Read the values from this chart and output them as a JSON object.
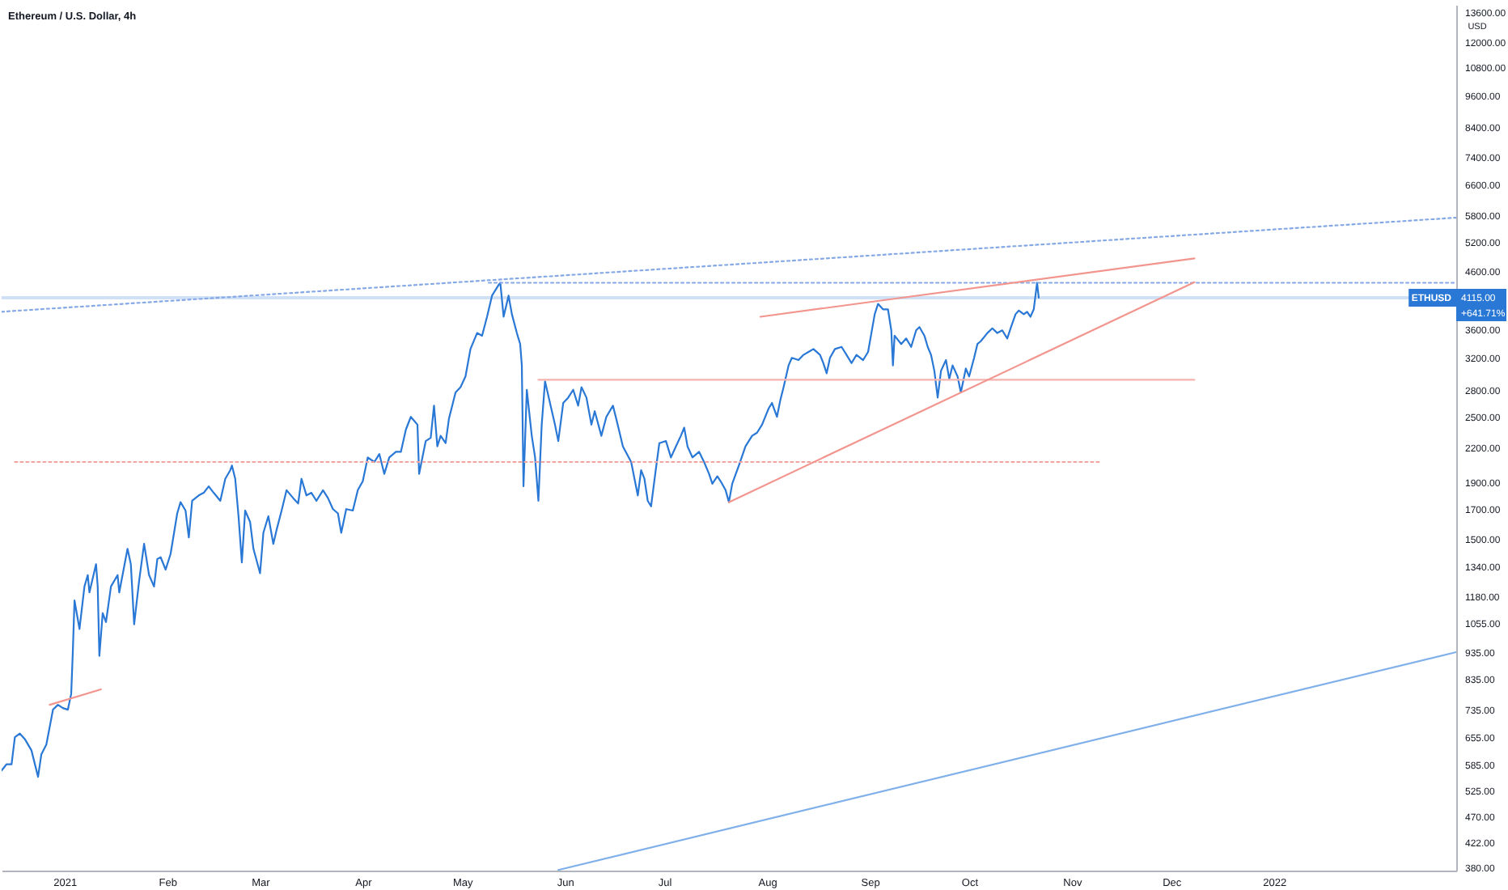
{
  "chart_data": {
    "type": "line",
    "title": "Ethereum / U.S. Dollar, 4h",
    "ylabel": "USD",
    "log": "y",
    "xlim": [
      "2020-12-13",
      "2022-02-25"
    ],
    "xticks": [
      {
        "value": "2021-01-01",
        "label": "2021"
      },
      {
        "value": "2021-02-01",
        "label": "Feb"
      },
      {
        "value": "2021-03-01",
        "label": "Mar"
      },
      {
        "value": "2021-04-01",
        "label": "Apr"
      },
      {
        "value": "2021-05-01",
        "label": "May"
      },
      {
        "value": "2021-06-01",
        "label": "Jun"
      },
      {
        "value": "2021-07-01",
        "label": "Jul"
      },
      {
        "value": "2021-08-01",
        "label": "Aug"
      },
      {
        "value": "2021-09-01",
        "label": "Sep"
      },
      {
        "value": "2021-10-01",
        "label": "Oct"
      },
      {
        "value": "2021-11-01",
        "label": "Nov"
      },
      {
        "value": "2021-12-01",
        "label": "Dec"
      },
      {
        "value": "2022-01-01",
        "label": "2022"
      }
    ],
    "ylim": [
      375,
      14000
    ],
    "yticks": [
      {
        "value": 380,
        "label": "380.00"
      },
      {
        "value": 422,
        "label": "422.00"
      },
      {
        "value": 470,
        "label": "470.00"
      },
      {
        "value": 525,
        "label": "525.00"
      },
      {
        "value": 585,
        "label": "585.00"
      },
      {
        "value": 655,
        "label": "655.00"
      },
      {
        "value": 735,
        "label": "735.00"
      },
      {
        "value": 835,
        "label": "835.00"
      },
      {
        "value": 935,
        "label": "935.00"
      },
      {
        "value": 1055,
        "label": "1055.00"
      },
      {
        "value": 1180,
        "label": "1180.00"
      },
      {
        "value": 1340,
        "label": "1340.00"
      },
      {
        "value": 1500,
        "label": "1500.00"
      },
      {
        "value": 1700,
        "label": "1700.00"
      },
      {
        "value": 1900,
        "label": "1900.00"
      },
      {
        "value": 2200,
        "label": "2200.00"
      },
      {
        "value": 2500,
        "label": "2500.00"
      },
      {
        "value": 2800,
        "label": "2800.00"
      },
      {
        "value": 3200,
        "label": "3200.00"
      },
      {
        "value": 3600,
        "label": "3600.00"
      },
      {
        "value": 4600,
        "label": "4600.00"
      },
      {
        "value": 5200,
        "label": "5200.00"
      },
      {
        "value": 5800,
        "label": "5800.00"
      },
      {
        "value": 6600,
        "label": "6600.00"
      },
      {
        "value": 7400,
        "label": "7400.00"
      },
      {
        "value": 8400,
        "label": "8400.00"
      },
      {
        "value": 9600,
        "label": "9600.00"
      },
      {
        "value": 10800,
        "label": "10800.00"
      },
      {
        "value": 12000,
        "label": "12000.00"
      },
      {
        "value": 13600,
        "label": "13600.00"
      }
    ],
    "series": [
      {
        "name": "ETHUSD",
        "color": "#2a78d6",
        "x": [
          "2020-12-13",
          "2020-12-14T12:00",
          "2020-12-16",
          "2020-12-17",
          "2020-12-18T12:00",
          "2020-12-20",
          "2020-12-22",
          "2020-12-24",
          "2020-12-25",
          "2020-12-26T12:00",
          "2020-12-28T12:00",
          "2020-12-30",
          "2020-12-31T12:00",
          "2021-01-02",
          "2021-01-03",
          "2021-01-03T12:00",
          "2021-01-04",
          "2021-01-05T12:00",
          "2021-01-07",
          "2021-01-08",
          "2021-01-08T12:00",
          "2021-01-10T12:00",
          "2021-01-11",
          "2021-01-11T12:00",
          "2021-01-12T12:00",
          "2021-01-13T12:00",
          "2021-01-15",
          "2021-01-17",
          "2021-01-17T12:00",
          "2021-01-20",
          "2021-01-21",
          "2021-01-22",
          "2021-01-23T12:00",
          "2021-01-25",
          "2021-01-26T12:00",
          "2021-01-28",
          "2021-01-29",
          "2021-01-30",
          "2021-01-31T12:00",
          "2021-02-02",
          "2021-02-04",
          "2021-02-05",
          "2021-02-06T12:00",
          "2021-02-07T12:00",
          "2021-02-08T12:00",
          "2021-02-10T12:00",
          "2021-02-12",
          "2021-02-13T12:00",
          "2021-02-15",
          "2021-02-17",
          "2021-02-18T12:00",
          "2021-02-20",
          "2021-02-20T12:00",
          "2021-02-21T12:00",
          "2021-02-22T12:00",
          "2021-02-23T12:00",
          "2021-02-24T12:00",
          "2021-02-26",
          "2021-02-27",
          "2021-03-01",
          "2021-03-02",
          "2021-03-03T12:00",
          "2021-03-05",
          "2021-03-06",
          "2021-03-07T12:00",
          "2021-03-09",
          "2021-03-11",
          "2021-03-12T12:00",
          "2021-03-13T12:00",
          "2021-03-15",
          "2021-03-16T12:00",
          "2021-03-18",
          "2021-03-20",
          "2021-03-21T12:00",
          "2021-03-23",
          "2021-03-24T12:00",
          "2021-03-25T12:00",
          "2021-03-27",
          "2021-03-29",
          "2021-03-30T12:00",
          "2021-04-01",
          "2021-04-02T12:00",
          "2021-04-04T12:00",
          "2021-04-06",
          "2021-04-07T12:00",
          "2021-04-09",
          "2021-04-11",
          "2021-04-12T12:00",
          "2021-04-14",
          "2021-04-15T12:00",
          "2021-04-17T12:00",
          "2021-04-18",
          "2021-04-20",
          "2021-04-21T12:00",
          "2021-04-22T12:00",
          "2021-04-23T12:00",
          "2021-04-24T12:00",
          "2021-04-26",
          "2021-04-27",
          "2021-04-29",
          "2021-04-30T12:00",
          "2021-05-02",
          "2021-05-03T12:00",
          "2021-05-05T12:00",
          "2021-05-07",
          "2021-05-08T12:00",
          "2021-05-10",
          "2021-05-12",
          "2021-05-12T12:00",
          "2021-05-13T12:00",
          "2021-05-15",
          "2021-05-16",
          "2021-05-17T12:00",
          "2021-05-18T12:00",
          "2021-05-19",
          "2021-05-19T12:00",
          "2021-05-20T12:00",
          "2021-05-22",
          "2021-05-23",
          "2021-05-24",
          "2021-05-25",
          "2021-05-26",
          "2021-05-27T12:00",
          "2021-05-29",
          "2021-05-30",
          "2021-05-31T12:00",
          "2021-06-02",
          "2021-06-03T12:00",
          "2021-06-05",
          "2021-06-06",
          "2021-06-07T12:00",
          "2021-06-09",
          "2021-06-10",
          "2021-06-12",
          "2021-06-13T12:00",
          "2021-06-15T12:00",
          "2021-06-16T12:00",
          "2021-06-18T12:00",
          "2021-06-21",
          "2021-06-22",
          "2021-06-23",
          "2021-06-24",
          "2021-06-25",
          "2021-06-26",
          "2021-06-27",
          "2021-06-28T12:00",
          "2021-06-29T12:00",
          "2021-07-01T12:00",
          "2021-07-03",
          "2021-07-04T12:00",
          "2021-07-06",
          "2021-07-07",
          "2021-07-08",
          "2021-07-09T12:00",
          "2021-07-11T12:00",
          "2021-07-13",
          "2021-07-14T12:00",
          "2021-07-15T12:00",
          "2021-07-17",
          "2021-07-18",
          "2021-07-19T12:00",
          "2021-07-20T12:00",
          "2021-07-21T12:00",
          "2021-07-23T12:00",
          "2021-07-25T12:00",
          "2021-07-27T12:00",
          "2021-07-29",
          "2021-07-30T12:00",
          "2021-08-01T12:00",
          "2021-08-02T12:00",
          "2021-08-04",
          "2021-08-05",
          "2021-08-06",
          "2021-08-07T12:00",
          "2021-08-08T12:00",
          "2021-08-10T12:00",
          "2021-08-12",
          "2021-08-13T12:00",
          "2021-08-15",
          "2021-08-17",
          "2021-08-18",
          "2021-08-19",
          "2021-08-20",
          "2021-08-21T12:00",
          "2021-08-23T12:00",
          "2021-08-25",
          "2021-08-26T12:00",
          "2021-08-28",
          "2021-08-30",
          "2021-08-31T12:00",
          "2021-09-01T12:00",
          "2021-09-02T12:00",
          "2021-09-03T12:00",
          "2021-09-05",
          "2021-09-06T12:00",
          "2021-09-07T12:00",
          "2021-09-08",
          "2021-09-08T12:00",
          "2021-09-10T12:00",
          "2021-09-12",
          "2021-09-13T12:00",
          "2021-09-15",
          "2021-09-16",
          "2021-09-17T12:00",
          "2021-09-18T12:00",
          "2021-09-19T12:00",
          "2021-09-20T12:00",
          "2021-09-21T12:00",
          "2021-09-22T12:00",
          "2021-09-24",
          "2021-09-25",
          "2021-09-26",
          "2021-09-27T12:00",
          "2021-09-28T12:00",
          "2021-09-30",
          "2021-10-01",
          "2021-10-02T12:00",
          "2021-10-03T12:00",
          "2021-10-04T12:00",
          "2021-10-06T12:00",
          "2021-10-08",
          "2021-10-09T12:00",
          "2021-10-11",
          "2021-10-12T12:00",
          "2021-10-13T12:00",
          "2021-10-15",
          "2021-10-16",
          "2021-10-17T12:00",
          "2021-10-18T12:00",
          "2021-10-19T12:00",
          "2021-10-20T12:00",
          "2021-10-21T12:00",
          "2021-10-22"
        ],
        "values": [
          570,
          585,
          585,
          655,
          665,
          650,
          620,
          555,
          610,
          635,
          735,
          750,
          740,
          735,
          785,
          940,
          1160,
          1030,
          1230,
          1290,
          1200,
          1350,
          1230,
          920,
          1100,
          1060,
          1230,
          1290,
          1200,
          1440,
          1350,
          1050,
          1260,
          1470,
          1290,
          1230,
          1380,
          1390,
          1320,
          1410,
          1670,
          1750,
          1690,
          1510,
          1760,
          1800,
          1820,
          1870,
          1820,
          1760,
          1930,
          2000,
          2040,
          1930,
          1650,
          1360,
          1690,
          1610,
          1440,
          1300,
          1540,
          1650,
          1470,
          1560,
          1690,
          1840,
          1780,
          1740,
          1930,
          1800,
          1820,
          1760,
          1840,
          1780,
          1700,
          1670,
          1540,
          1700,
          1690,
          1840,
          1910,
          2110,
          2070,
          2140,
          1970,
          2110,
          2160,
          2160,
          2370,
          2500,
          2420,
          1970,
          2260,
          2290,
          2620,
          2210,
          2310,
          2240,
          2480,
          2770,
          2830,
          2960,
          3320,
          3550,
          3510,
          3800,
          4150,
          4340,
          4380,
          3800,
          4150,
          3840,
          3550,
          3390,
          3100,
          1870,
          2800,
          2310,
          2110,
          1760,
          2420,
          2900,
          2650,
          2420,
          2260,
          2650,
          2710,
          2800,
          2620,
          2830,
          2710,
          2420,
          2560,
          2310,
          2500,
          2620,
          2480,
          2210,
          2070,
          1930,
          1800,
          2000,
          1930,
          1760,
          1720,
          2020,
          2240,
          2260,
          2110,
          2210,
          2310,
          2390,
          2210,
          2110,
          2160,
          2070,
          1970,
          1890,
          1950,
          1910,
          1840,
          1750,
          1890,
          2040,
          2210,
          2310,
          2340,
          2420,
          2590,
          2650,
          2500,
          2680,
          2830,
          3100,
          3200,
          3170,
          3240,
          3280,
          3320,
          3240,
          3130,
          3000,
          3200,
          3320,
          3350,
          3240,
          3130,
          3240,
          3170,
          3280,
          3550,
          3840,
          4010,
          3920,
          3920,
          3590,
          3100,
          3510,
          3390,
          3470,
          3350,
          3590,
          3640,
          3510,
          3350,
          3240,
          3030,
          2710,
          3030,
          3170,
          2930,
          3100,
          2960,
          2770,
          3060,
          2960,
          3200,
          3390,
          3430,
          3550,
          3620,
          3550,
          3590,
          3470,
          3620,
          3840,
          3900,
          3840,
          3880,
          3800,
          3920,
          4380,
          4115
        ]
      },
      {
        "color": "#86a9e6",
        "line_style": "dotted",
        "x": [
          "2020-12-13",
          "2022-02-25"
        ],
        "values": [
          3880,
          5750
        ]
      },
      {
        "color": "#86a9e6",
        "line_style": "dotted",
        "x": [
          "2021-05-09",
          "2022-02-25"
        ],
        "values": [
          4380,
          4380
        ]
      },
      {
        "color": "#f2a39d",
        "line_style": "dotted",
        "x": [
          "2020-12-17",
          "2021-11-10"
        ],
        "values": [
          2070,
          2070
        ]
      },
      {
        "color": "#f6b3ae",
        "x": [
          "2021-05-24",
          "2021-12-08"
        ],
        "values": [
          2920,
          2920
        ]
      },
      {
        "color": "#f2958e",
        "x": [
          "2021-07-30",
          "2021-12-08"
        ],
        "values": [
          3800,
          4850
        ]
      },
      {
        "color": "#f2958e",
        "x": [
          "2021-07-20T12:00",
          "2021-12-08"
        ],
        "values": [
          1750,
          4390
        ]
      },
      {
        "color": "#f2958e",
        "x": [
          "2020-12-27T12:00",
          "2021-01-12"
        ],
        "values": [
          750,
          800
        ]
      },
      {
        "color": "#7fb0ea",
        "x": [
          "2021-05-30",
          "2022-02-25"
        ],
        "values": [
          376,
          935
        ]
      }
    ],
    "ref_lines": [
      {
        "axis": "y",
        "value": 4115,
        "label": "4115.00",
        "color": "#2a78d6"
      }
    ],
    "annotations": [
      "+641.71%"
    ]
  }
}
